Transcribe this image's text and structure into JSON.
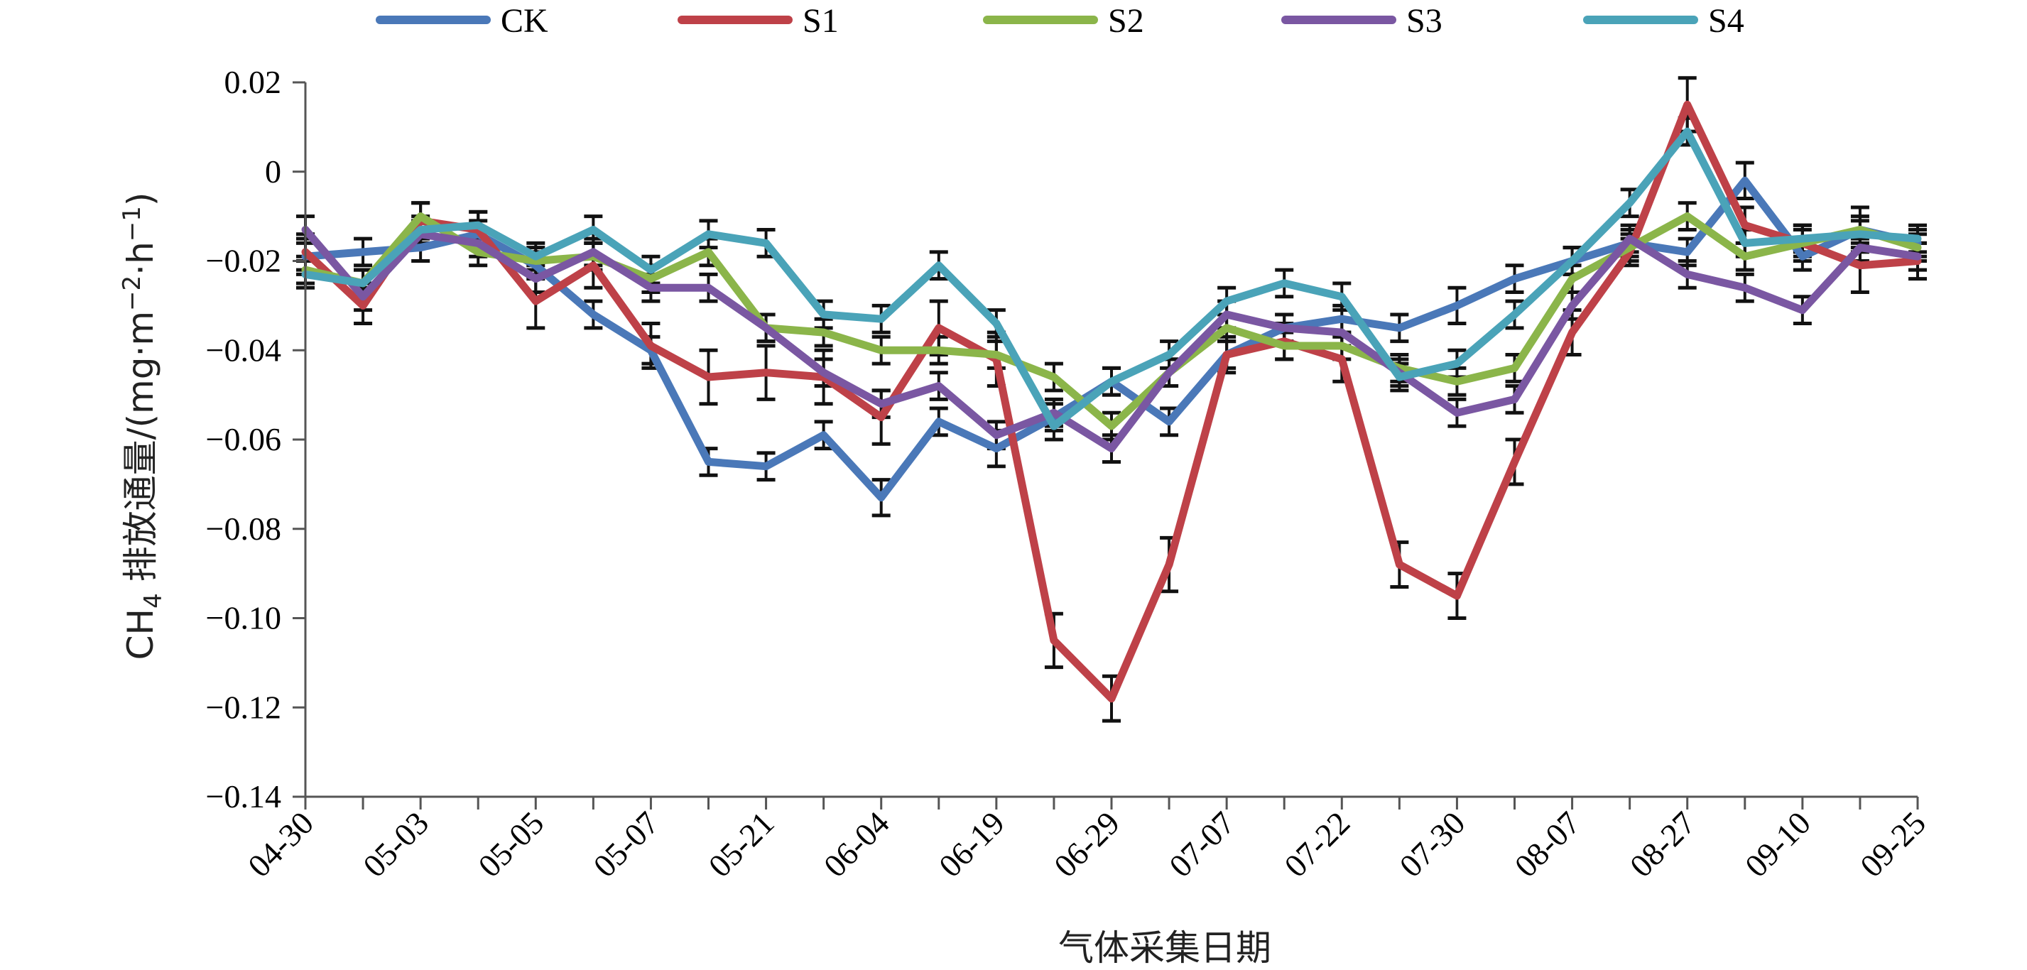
{
  "chart_data": {
    "type": "line",
    "title": "",
    "xlabel": "气体采集日期",
    "ylabel": "CH4 排放通量/(mg·m−2·h−1)",
    "ylabel_parts": {
      "pre": "CH",
      "sub": "4",
      "mid": " 排放通量/(mg·m",
      "sup1": "−2",
      "dot": "·h",
      "sup2": "−1",
      "post": ")"
    },
    "ylim": [
      -0.14,
      0.02
    ],
    "yticks": [
      0.02,
      0,
      -0.02,
      -0.04,
      -0.06,
      -0.08,
      -0.1,
      -0.12,
      -0.14
    ],
    "ytick_labels": [
      "0.02",
      "0",
      "−0.02",
      "−0.04",
      "−0.06",
      "−0.08",
      "−0.10",
      "−0.12",
      "−0.14"
    ],
    "x_tick_labels": [
      "04-30",
      "05-03",
      "05-05",
      "05-07",
      "05-21",
      "06-04",
      "06-19",
      "06-29",
      "07-07",
      "07-22",
      "07-30",
      "08-07",
      "08-27",
      "09-10",
      "09-25"
    ],
    "n_points": 29,
    "grid": false,
    "legend_position": "top",
    "error_bars": true,
    "series": [
      {
        "name": "CK",
        "color": "#4a78b8",
        "values": [
          -0.019,
          -0.018,
          -0.017,
          -0.014,
          -0.021,
          -0.032,
          -0.04,
          -0.065,
          -0.066,
          -0.059,
          -0.073,
          -0.056,
          -0.062,
          -0.055,
          -0.047,
          -0.056,
          -0.041,
          -0.035,
          -0.033,
          -0.035,
          -0.03,
          -0.024,
          -0.02,
          -0.016,
          -0.018,
          -0.002,
          -0.019,
          -0.013,
          -0.016
        ],
        "errors": [
          0.004,
          0.003,
          0.003,
          0.003,
          0.003,
          0.003,
          0.003,
          0.003,
          0.003,
          0.003,
          0.004,
          0.003,
          0.004,
          0.003,
          0.003,
          0.003,
          0.003,
          0.003,
          0.003,
          0.003,
          0.004,
          0.003,
          0.003,
          0.003,
          0.003,
          0.004,
          0.003,
          0.005,
          0.003
        ]
      },
      {
        "name": "S1",
        "color": "#be4148",
        "values": [
          -0.018,
          -0.03,
          -0.011,
          -0.013,
          -0.029,
          -0.021,
          -0.039,
          -0.046,
          -0.045,
          -0.046,
          -0.055,
          -0.035,
          -0.042,
          -0.105,
          -0.118,
          -0.088,
          -0.041,
          -0.038,
          -0.042,
          -0.088,
          -0.095,
          -0.065,
          -0.036,
          -0.018,
          0.015,
          -0.012,
          -0.016,
          -0.021,
          -0.02
        ],
        "errors": [
          0.004,
          0.004,
          0.004,
          0.004,
          0.006,
          0.005,
          0.005,
          0.006,
          0.006,
          0.006,
          0.006,
          0.006,
          0.006,
          0.006,
          0.005,
          0.006,
          0.004,
          0.004,
          0.005,
          0.005,
          0.005,
          0.005,
          0.005,
          0.003,
          0.006,
          0.004,
          0.004,
          0.006,
          0.004
        ]
      },
      {
        "name": "S2",
        "color": "#8bb54a",
        "values": [
          -0.022,
          -0.025,
          -0.01,
          -0.018,
          -0.02,
          -0.019,
          -0.024,
          -0.018,
          -0.035,
          -0.036,
          -0.04,
          -0.04,
          -0.041,
          -0.046,
          -0.057,
          -0.045,
          -0.035,
          -0.039,
          -0.039,
          -0.044,
          -0.047,
          -0.044,
          -0.024,
          -0.017,
          -0.01,
          -0.019,
          -0.016,
          -0.013,
          -0.017
        ],
        "errors": [
          0.003,
          0.003,
          0.003,
          0.003,
          0.003,
          0.003,
          0.003,
          0.003,
          0.003,
          0.003,
          0.003,
          0.003,
          0.003,
          0.003,
          0.003,
          0.003,
          0.003,
          0.003,
          0.003,
          0.003,
          0.003,
          0.003,
          0.003,
          0.003,
          0.003,
          0.003,
          0.003,
          0.003,
          0.003
        ]
      },
      {
        "name": "S3",
        "color": "#7a57a2",
        "values": [
          -0.013,
          -0.028,
          -0.014,
          -0.016,
          -0.024,
          -0.018,
          -0.026,
          -0.026,
          -0.035,
          -0.045,
          -0.052,
          -0.048,
          -0.059,
          -0.054,
          -0.062,
          -0.045,
          -0.032,
          -0.035,
          -0.036,
          -0.045,
          -0.054,
          -0.051,
          -0.03,
          -0.015,
          -0.023,
          -0.026,
          -0.031,
          -0.017,
          -0.019
        ],
        "errors": [
          0.003,
          0.003,
          0.003,
          0.003,
          0.003,
          0.003,
          0.003,
          0.003,
          0.003,
          0.003,
          0.003,
          0.003,
          0.003,
          0.003,
          0.003,
          0.003,
          0.003,
          0.003,
          0.003,
          0.003,
          0.003,
          0.003,
          0.003,
          0.003,
          0.003,
          0.003,
          0.003,
          0.003,
          0.003
        ]
      },
      {
        "name": "S4",
        "color": "#4aa3b8",
        "values": [
          -0.023,
          -0.025,
          -0.013,
          -0.012,
          -0.019,
          -0.013,
          -0.022,
          -0.014,
          -0.016,
          -0.032,
          -0.033,
          -0.021,
          -0.034,
          -0.057,
          -0.047,
          -0.041,
          -0.029,
          -0.025,
          -0.028,
          -0.046,
          -0.043,
          -0.032,
          -0.02,
          -0.007,
          0.009,
          -0.016,
          -0.015,
          -0.014,
          -0.015
        ],
        "errors": [
          0.003,
          0.003,
          0.003,
          0.003,
          0.003,
          0.003,
          0.003,
          0.003,
          0.003,
          0.003,
          0.003,
          0.003,
          0.003,
          0.003,
          0.003,
          0.003,
          0.003,
          0.003,
          0.003,
          0.003,
          0.003,
          0.003,
          0.003,
          0.003,
          0.003,
          0.003,
          0.003,
          0.003,
          0.003
        ]
      }
    ]
  }
}
